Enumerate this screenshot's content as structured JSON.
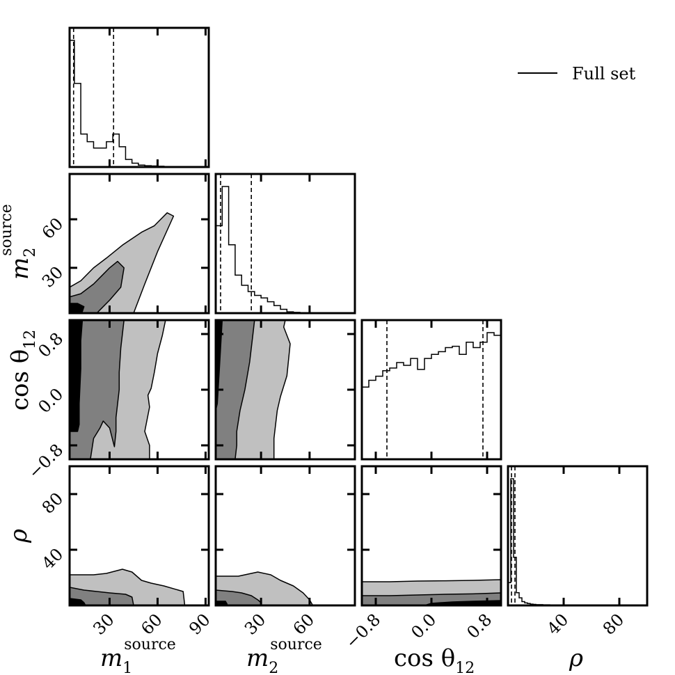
{
  "chart_data": {
    "type": "corner",
    "parameters": [
      {
        "key": "m1",
        "label": "m",
        "sub": "1",
        "sup": "source",
        "range": [
          5,
          92
        ],
        "ticks": [
          30,
          60,
          90
        ],
        "tick_labels": [
          "30",
          "60",
          "90"
        ]
      },
      {
        "key": "m2",
        "label": "m",
        "sub": "2",
        "sup": "source",
        "range": [
          2,
          88
        ],
        "ticks": [
          30,
          60
        ],
        "tick_labels": [
          "30",
          "60"
        ]
      },
      {
        "key": "cos12",
        "label": "cos θ",
        "sub": "12",
        "sup": "",
        "range": [
          -1.0,
          1.0
        ],
        "ticks": [
          -0.8,
          0.0,
          0.8
        ],
        "tick_labels": [
          "−0.8",
          "0.0",
          "0.8"
        ]
      },
      {
        "key": "rho",
        "label": "ρ",
        "sub": "",
        "sup": "",
        "range": [
          0,
          100
        ],
        "ticks": [
          40,
          80
        ],
        "tick_labels": [
          "40",
          "80"
        ]
      }
    ],
    "legend": {
      "entries": [
        "Full set"
      ],
      "placement": "top-right"
    },
    "contour_levels": [
      "inner",
      "middle",
      "outer"
    ],
    "contour_colors": [
      "#000000",
      "#808080",
      "#c0c0c0"
    ],
    "histograms": [
      {
        "param": "m1",
        "bin_edges": [
          5,
          8,
          12,
          16,
          20,
          24,
          28,
          32,
          36,
          40,
          44,
          48,
          52,
          56,
          60,
          64,
          68,
          72,
          76,
          80,
          84,
          88,
          92
        ],
        "counts": [
          1.0,
          0.66,
          0.26,
          0.2,
          0.15,
          0.15,
          0.2,
          0.26,
          0.16,
          0.06,
          0.03,
          0.015,
          0.01,
          0.008,
          0.006,
          0.004,
          0.003,
          0.004,
          0.003,
          0.002,
          0.002,
          0.001
        ],
        "quantiles": [
          7.5,
          32.5
        ]
      },
      {
        "param": "m2",
        "bin_edges": [
          2,
          6,
          10,
          14,
          18,
          22,
          26,
          30,
          34,
          38,
          42,
          46,
          50,
          54,
          58,
          62,
          66,
          70,
          74,
          78,
          82,
          86
        ],
        "counts": [
          0.69,
          1.0,
          0.54,
          0.3,
          0.22,
          0.17,
          0.14,
          0.12,
          0.09,
          0.06,
          0.03,
          0.01,
          0.006,
          0.004,
          0.003,
          0.002,
          0.001,
          0.001,
          0.001,
          0.001,
          0.001
        ],
        "quantiles": [
          5,
          24
        ]
      },
      {
        "param": "cos12",
        "bin_edges": [
          -1.0,
          -0.9,
          -0.8,
          -0.7,
          -0.6,
          -0.5,
          -0.4,
          -0.3,
          -0.2,
          -0.1,
          0.0,
          0.1,
          0.2,
          0.3,
          0.4,
          0.5,
          0.6,
          0.7,
          0.8,
          0.9,
          1.0
        ],
        "counts": [
          0.53,
          0.58,
          0.61,
          0.65,
          0.67,
          0.71,
          0.69,
          0.74,
          0.66,
          0.74,
          0.77,
          0.79,
          0.82,
          0.83,
          0.77,
          0.86,
          0.82,
          0.86,
          0.93,
          0.91
        ],
        "quantiles": [
          -0.64,
          0.74
        ]
      },
      {
        "param": "rho",
        "bin_edges": [
          0,
          2,
          4,
          6,
          8,
          10,
          12,
          14,
          16,
          18,
          20,
          25,
          30,
          40,
          50,
          60,
          70,
          80,
          90,
          100
        ],
        "counts": [
          0.18,
          1.0,
          0.38,
          0.1,
          0.06,
          0.03,
          0.02,
          0.015,
          0.01,
          0.008,
          0.006,
          0.005,
          0.004,
          0.003,
          0.002,
          0.002,
          0.001,
          0.001,
          0.001
        ],
        "quantiles": [
          2.5,
          5
        ]
      }
    ],
    "contours": [
      {
        "x": "m1",
        "y": "m2",
        "regions": [
          {
            "level": "outer",
            "points": [
              [
                5,
                2
              ],
              [
                5,
                18
              ],
              [
                12,
                22
              ],
              [
                20,
                30
              ],
              [
                28,
                36
              ],
              [
                38,
                44
              ],
              [
                50,
                52
              ],
              [
                58,
                56
              ],
              [
                66,
                64
              ],
              [
                70,
                62
              ],
              [
                60,
                40
              ],
              [
                52,
                20
              ],
              [
                45,
                2
              ]
            ]
          },
          {
            "level": "middle",
            "points": [
              [
                5,
                2
              ],
              [
                5,
                12
              ],
              [
                12,
                14
              ],
              [
                20,
                20
              ],
              [
                26,
                26
              ],
              [
                30,
                30
              ],
              [
                35,
                34
              ],
              [
                39,
                30
              ],
              [
                37,
                18
              ],
              [
                30,
                10
              ],
              [
                24,
                4
              ],
              [
                22,
                2
              ]
            ]
          },
          {
            "level": "inner",
            "points": [
              [
                5,
                2
              ],
              [
                5,
                8
              ],
              [
                10,
                8
              ],
              [
                14,
                6
              ],
              [
                13,
                3
              ],
              [
                11,
                2
              ]
            ]
          }
        ]
      },
      {
        "x": "m1",
        "y": "cos12",
        "regions": [
          {
            "level": "outer",
            "points": [
              [
                5,
                1.0
              ],
              [
                65,
                1.0
              ],
              [
                63,
                0.78
              ],
              [
                60,
                0.52
              ],
              [
                58,
                0.25
              ],
              [
                56,
                0.02
              ],
              [
                54,
                -0.08
              ],
              [
                55,
                -0.25
              ],
              [
                52,
                -0.6
              ],
              [
                55,
                -0.8
              ],
              [
                55,
                -1.0
              ],
              [
                5,
                -1.0
              ]
            ]
          },
          {
            "level": "middle",
            "points": [
              [
                5,
                1.0
              ],
              [
                39,
                1.0
              ],
              [
                37,
                0.6
              ],
              [
                36,
                0.25
              ],
              [
                36,
                0.0
              ],
              [
                35,
                -0.2
              ],
              [
                34,
                -0.4
              ],
              [
                34,
                -0.6
              ],
              [
                33,
                -0.82
              ],
              [
                30,
                -0.55
              ],
              [
                26,
                -0.45
              ],
              [
                24,
                -0.55
              ],
              [
                20,
                -0.7
              ],
              [
                18,
                -1.0
              ],
              [
                5,
                -1.0
              ]
            ]
          },
          {
            "level": "inner",
            "points": [
              [
                5,
                1.0
              ],
              [
                13,
                1.0
              ],
              [
                12,
                0.7
              ],
              [
                12,
                0.3
              ],
              [
                11,
                -0.2
              ],
              [
                11,
                -0.5
              ],
              [
                10,
                -0.6
              ],
              [
                5,
                -0.6
              ]
            ]
          }
        ]
      },
      {
        "x": "m2",
        "y": "cos12",
        "regions": [
          {
            "level": "outer",
            "points": [
              [
                2,
                1.0
              ],
              [
                45,
                1.0
              ],
              [
                44,
                0.9
              ],
              [
                48,
                0.66
              ],
              [
                46,
                0.2
              ],
              [
                42,
                -0.1
              ],
              [
                40,
                -0.3
              ],
              [
                38,
                -0.7
              ],
              [
                38,
                -1.0
              ],
              [
                2,
                -1.0
              ]
            ]
          },
          {
            "level": "middle",
            "points": [
              [
                2,
                1.0
              ],
              [
                26,
                1.0
              ],
              [
                25,
                0.8
              ],
              [
                23,
                0.4
              ],
              [
                20,
                0.0
              ],
              [
                17,
                -0.3
              ],
              [
                15,
                -0.6
              ],
              [
                15,
                -0.8
              ],
              [
                14,
                -1.0
              ],
              [
                2,
                -1.0
              ]
            ]
          },
          {
            "level": "inner",
            "points": [
              [
                2,
                1.0
              ],
              [
                6,
                1.0
              ],
              [
                5,
                0.6
              ],
              [
                4,
                0.2
              ],
              [
                3,
                -0.2
              ],
              [
                2,
                -0.3
              ]
            ]
          }
        ]
      },
      {
        "x": "m1",
        "y": "rho",
        "regions": [
          {
            "level": "outer",
            "points": [
              [
                5,
                0
              ],
              [
                5,
                22
              ],
              [
                20,
                22
              ],
              [
                28,
                23
              ],
              [
                38,
                26
              ],
              [
                44,
                24
              ],
              [
                50,
                18
              ],
              [
                56,
                16
              ],
              [
                64,
                14
              ],
              [
                76,
                10
              ],
              [
                77,
                0
              ]
            ]
          },
          {
            "level": "middle",
            "points": [
              [
                5,
                0
              ],
              [
                5,
                13
              ],
              [
                14,
                11
              ],
              [
                22,
                10
              ],
              [
                30,
                9
              ],
              [
                40,
                8
              ],
              [
                44,
                6
              ],
              [
                45,
                0
              ]
            ]
          },
          {
            "level": "inner",
            "points": [
              [
                5,
                0
              ],
              [
                5,
                5
              ],
              [
                12,
                4
              ],
              [
                14,
                2
              ],
              [
                15,
                0
              ]
            ]
          }
        ]
      },
      {
        "x": "m2",
        "y": "rho",
        "regions": [
          {
            "level": "outer",
            "points": [
              [
                2,
                0
              ],
              [
                2,
                21
              ],
              [
                16,
                21
              ],
              [
                28,
                24
              ],
              [
                36,
                22
              ],
              [
                42,
                18
              ],
              [
                50,
                14
              ],
              [
                56,
                9
              ],
              [
                60,
                4
              ],
              [
                62,
                0
              ]
            ]
          },
          {
            "level": "middle",
            "points": [
              [
                2,
                0
              ],
              [
                2,
                11
              ],
              [
                12,
                10
              ],
              [
                18,
                9
              ],
              [
                24,
                7
              ],
              [
                28,
                4
              ],
              [
                30,
                2
              ],
              [
                30,
                0
              ]
            ]
          },
          {
            "level": "inner",
            "points": [
              [
                2,
                0
              ],
              [
                2,
                3
              ],
              [
                8,
                3
              ],
              [
                9,
                1
              ],
              [
                9,
                0
              ]
            ]
          }
        ]
      },
      {
        "x": "cos12",
        "y": "rho",
        "regions": [
          {
            "level": "outer",
            "points": [
              [
                -1,
                0
              ],
              [
                -1,
                17
              ],
              [
                -0.6,
                17
              ],
              [
                -0.2,
                17.5
              ],
              [
                0.2,
                17.7
              ],
              [
                0.6,
                18
              ],
              [
                1,
                18.5
              ],
              [
                1,
                0
              ]
            ]
          },
          {
            "level": "middle",
            "points": [
              [
                -1,
                0
              ],
              [
                -1,
                7
              ],
              [
                -0.6,
                7
              ],
              [
                -0.2,
                7.5
              ],
              [
                0.2,
                8
              ],
              [
                0.6,
                8.3
              ],
              [
                1,
                9
              ],
              [
                1,
                0
              ]
            ]
          },
          {
            "level": "inner",
            "points": [
              [
                -0.1,
                0
              ],
              [
                0.0,
                1.5
              ],
              [
                0.3,
                2.5
              ],
              [
                0.6,
                3
              ],
              [
                1,
                3.5
              ],
              [
                1,
                0
              ]
            ]
          }
        ]
      }
    ]
  }
}
